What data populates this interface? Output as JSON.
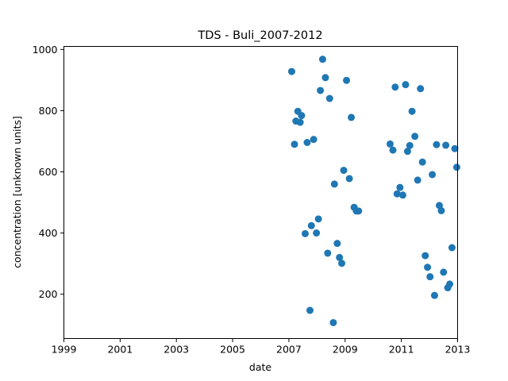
{
  "chart_data": {
    "type": "scatter",
    "title": "TDS - Buli_2007-2012",
    "xlabel": "date",
    "ylabel": "concentration [unknown units]",
    "xlim": [
      1999.0,
      2013.0
    ],
    "ylim": [
      55,
      1010
    ],
    "x_ticks": [
      1999,
      2001,
      2003,
      2005,
      2007,
      2009,
      2011,
      2013
    ],
    "x_tick_labels": [
      "1999",
      "2001",
      "2003",
      "2005",
      "2007",
      "2009",
      "2011",
      "2013"
    ],
    "y_ticks": [
      200,
      400,
      600,
      800,
      1000
    ],
    "y_tick_labels": [
      "200",
      "400",
      "600",
      "800",
      "1000"
    ],
    "grid": false,
    "marker_color": "#1f77b4",
    "points": [
      {
        "x": 2007.1,
        "y": 928
      },
      {
        "x": 2007.2,
        "y": 690
      },
      {
        "x": 2007.25,
        "y": 766
      },
      {
        "x": 2007.32,
        "y": 798
      },
      {
        "x": 2007.4,
        "y": 762
      },
      {
        "x": 2007.45,
        "y": 784
      },
      {
        "x": 2007.58,
        "y": 398
      },
      {
        "x": 2007.65,
        "y": 696
      },
      {
        "x": 2007.75,
        "y": 147
      },
      {
        "x": 2007.8,
        "y": 424
      },
      {
        "x": 2007.88,
        "y": 706
      },
      {
        "x": 2007.98,
        "y": 400
      },
      {
        "x": 2008.05,
        "y": 446
      },
      {
        "x": 2008.12,
        "y": 866
      },
      {
        "x": 2008.2,
        "y": 968
      },
      {
        "x": 2008.3,
        "y": 908
      },
      {
        "x": 2008.38,
        "y": 334
      },
      {
        "x": 2008.45,
        "y": 840
      },
      {
        "x": 2008.58,
        "y": 107
      },
      {
        "x": 2008.62,
        "y": 560
      },
      {
        "x": 2008.72,
        "y": 366
      },
      {
        "x": 2008.8,
        "y": 320
      },
      {
        "x": 2008.88,
        "y": 301
      },
      {
        "x": 2008.95,
        "y": 605
      },
      {
        "x": 2009.05,
        "y": 899
      },
      {
        "x": 2009.15,
        "y": 578
      },
      {
        "x": 2009.22,
        "y": 778
      },
      {
        "x": 2009.32,
        "y": 484
      },
      {
        "x": 2009.4,
        "y": 472
      },
      {
        "x": 2009.48,
        "y": 472
      },
      {
        "x": 2010.6,
        "y": 691
      },
      {
        "x": 2010.7,
        "y": 671
      },
      {
        "x": 2010.78,
        "y": 877
      },
      {
        "x": 2010.85,
        "y": 528
      },
      {
        "x": 2010.95,
        "y": 549
      },
      {
        "x": 2011.05,
        "y": 524
      },
      {
        "x": 2011.15,
        "y": 885
      },
      {
        "x": 2011.22,
        "y": 667
      },
      {
        "x": 2011.3,
        "y": 686
      },
      {
        "x": 2011.38,
        "y": 798
      },
      {
        "x": 2011.48,
        "y": 716
      },
      {
        "x": 2011.58,
        "y": 573
      },
      {
        "x": 2011.68,
        "y": 872
      },
      {
        "x": 2011.75,
        "y": 632
      },
      {
        "x": 2011.85,
        "y": 326
      },
      {
        "x": 2011.93,
        "y": 288
      },
      {
        "x": 2012.02,
        "y": 257
      },
      {
        "x": 2012.1,
        "y": 591
      },
      {
        "x": 2012.18,
        "y": 196
      },
      {
        "x": 2012.25,
        "y": 689
      },
      {
        "x": 2012.35,
        "y": 490
      },
      {
        "x": 2012.42,
        "y": 473
      },
      {
        "x": 2012.5,
        "y": 272
      },
      {
        "x": 2012.58,
        "y": 687
      },
      {
        "x": 2012.65,
        "y": 221
      },
      {
        "x": 2012.72,
        "y": 233
      },
      {
        "x": 2012.8,
        "y": 352
      },
      {
        "x": 2012.9,
        "y": 676
      },
      {
        "x": 2012.97,
        "y": 615
      }
    ]
  }
}
